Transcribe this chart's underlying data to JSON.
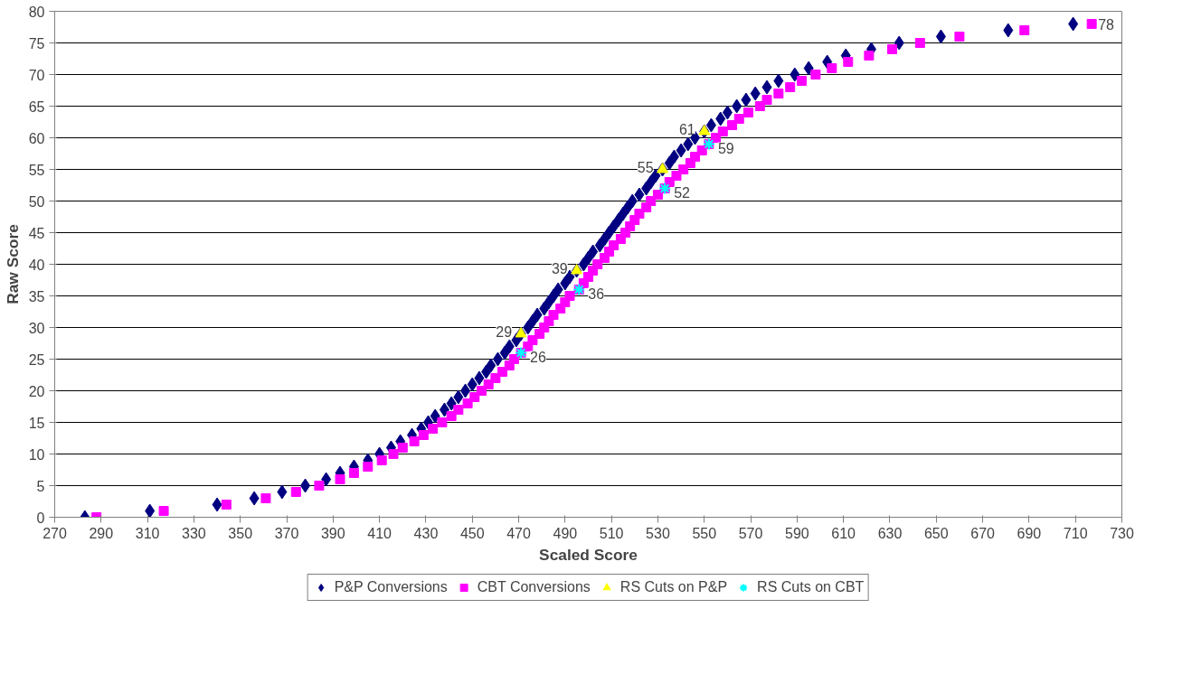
{
  "chart_data": {
    "type": "scatter",
    "xlabel": "Scaled Score",
    "ylabel": "Raw Score",
    "xlim": [
      270,
      730
    ],
    "xticks": [
      270,
      290,
      310,
      330,
      350,
      370,
      390,
      410,
      430,
      450,
      470,
      490,
      510,
      530,
      550,
      570,
      590,
      610,
      630,
      650,
      670,
      690,
      710,
      730
    ],
    "ylim": [
      0,
      80
    ],
    "yticks": [
      0,
      5,
      10,
      15,
      20,
      25,
      30,
      35,
      40,
      45,
      50,
      55,
      60,
      65,
      70,
      75,
      80
    ],
    "grid": "y",
    "legend": "bottom",
    "series": [
      {
        "name": "P&P Conversions",
        "color": "#000080",
        "marker": "diamond",
        "x": [
          283,
          311,
          340,
          356,
          368,
          378,
          387,
          393,
          399,
          405,
          410,
          415,
          419,
          424,
          428,
          431,
          434,
          438,
          441,
          444,
          447,
          450,
          453,
          456,
          458,
          461,
          464,
          466,
          469,
          471,
          474,
          476,
          478,
          481,
          483,
          485,
          487,
          490,
          492,
          495,
          498,
          500,
          502,
          505,
          507,
          509,
          511,
          513,
          515,
          517,
          519,
          522,
          525,
          527,
          529,
          532,
          535,
          537,
          540,
          543,
          546,
          550,
          553,
          557,
          560,
          564,
          568,
          572,
          577,
          582,
          589,
          595,
          603,
          611,
          622,
          634,
          652,
          681,
          709
        ],
        "values": [
          0,
          1,
          2,
          3,
          4,
          5,
          6,
          7,
          8,
          9,
          10,
          11,
          12,
          13,
          14,
          15,
          16,
          17,
          18,
          19,
          20,
          21,
          22,
          23,
          24,
          25,
          26,
          27,
          28,
          29,
          30,
          31,
          32,
          33,
          34,
          35,
          36,
          37,
          38,
          39,
          40,
          41,
          42,
          43,
          44,
          45,
          46,
          47,
          48,
          49,
          50,
          51,
          52,
          53,
          54,
          55,
          56,
          57,
          58,
          59,
          60,
          61,
          62,
          63,
          64,
          65,
          66,
          67,
          68,
          69,
          70,
          71,
          72,
          73,
          74,
          75,
          76,
          77,
          78
        ]
      },
      {
        "name": "CBT Conversions",
        "color": "#ff00ff",
        "marker": "square",
        "x": [
          288,
          317,
          344,
          361,
          374,
          384,
          393,
          399,
          405,
          411,
          416,
          420,
          425,
          429,
          433,
          437,
          441,
          444,
          448,
          451,
          454,
          457,
          460,
          463,
          466,
          468,
          471,
          474,
          476,
          479,
          481,
          483,
          485,
          488,
          490,
          492,
          496,
          498,
          500,
          502,
          504,
          507,
          509,
          511,
          514,
          516,
          518,
          520,
          522,
          525,
          527,
          530,
          533,
          535,
          538,
          541,
          544,
          546,
          549,
          552,
          555,
          558,
          562,
          565,
          569,
          574,
          577,
          582,
          587,
          592,
          598,
          605,
          612,
          621,
          631,
          643,
          660,
          688,
          717
        ],
        "values": [
          0,
          1,
          2,
          3,
          4,
          5,
          6,
          7,
          8,
          9,
          10,
          11,
          12,
          13,
          14,
          15,
          16,
          17,
          18,
          19,
          20,
          21,
          22,
          23,
          24,
          25,
          26,
          27,
          28,
          29,
          30,
          31,
          32,
          33,
          34,
          35,
          36,
          37,
          38,
          39,
          40,
          41,
          42,
          43,
          44,
          45,
          46,
          47,
          48,
          49,
          50,
          51,
          52,
          53,
          54,
          55,
          56,
          57,
          58,
          59,
          60,
          61,
          62,
          63,
          64,
          65,
          66,
          67,
          68,
          69,
          70,
          71,
          72,
          73,
          74,
          75,
          76,
          77,
          78
        ]
      },
      {
        "name": "RS Cuts on P&P",
        "color": "#ffff00",
        "marker": "triangle",
        "x": [
          471,
          495,
          532,
          550
        ],
        "values": [
          29,
          39,
          55,
          61
        ],
        "value_labels": [
          "29",
          "39",
          "55",
          "61"
        ]
      },
      {
        "name": "RS Cuts on CBT",
        "color": "#00ffff",
        "marker": "cross",
        "x": [
          471,
          496,
          533,
          552
        ],
        "values": [
          26,
          36,
          52,
          59
        ],
        "value_labels": [
          "26",
          "36",
          "52",
          "59"
        ]
      }
    ],
    "annotations": [
      {
        "text": "78",
        "x": 717,
        "y": 78
      }
    ]
  }
}
